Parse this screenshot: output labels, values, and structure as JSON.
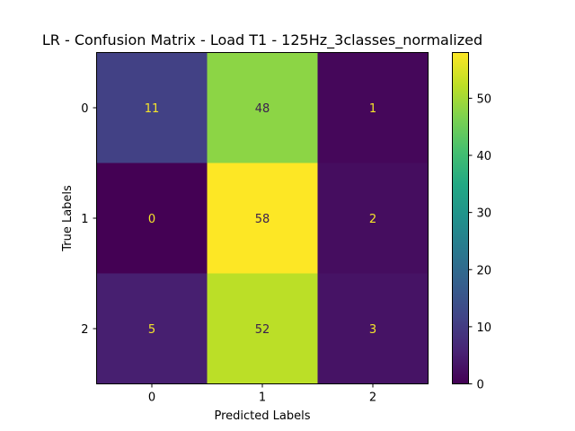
{
  "chart_data": {
    "type": "heatmap",
    "title": "LR - Confusion Matrix - Load T1 - 125Hz_3classes_normalized",
    "xlabel": "Predicted Labels",
    "ylabel": "True Labels",
    "x_categories": [
      "0",
      "1",
      "2"
    ],
    "y_categories": [
      "0",
      "1",
      "2"
    ],
    "values": [
      [
        11,
        48,
        1
      ],
      [
        0,
        58,
        2
      ],
      [
        5,
        52,
        3
      ]
    ],
    "colormap": "viridis",
    "vmin": 0,
    "vmax": 58,
    "colorbar_ticks": [
      0,
      10,
      20,
      30,
      40,
      50
    ],
    "grid": false
  }
}
